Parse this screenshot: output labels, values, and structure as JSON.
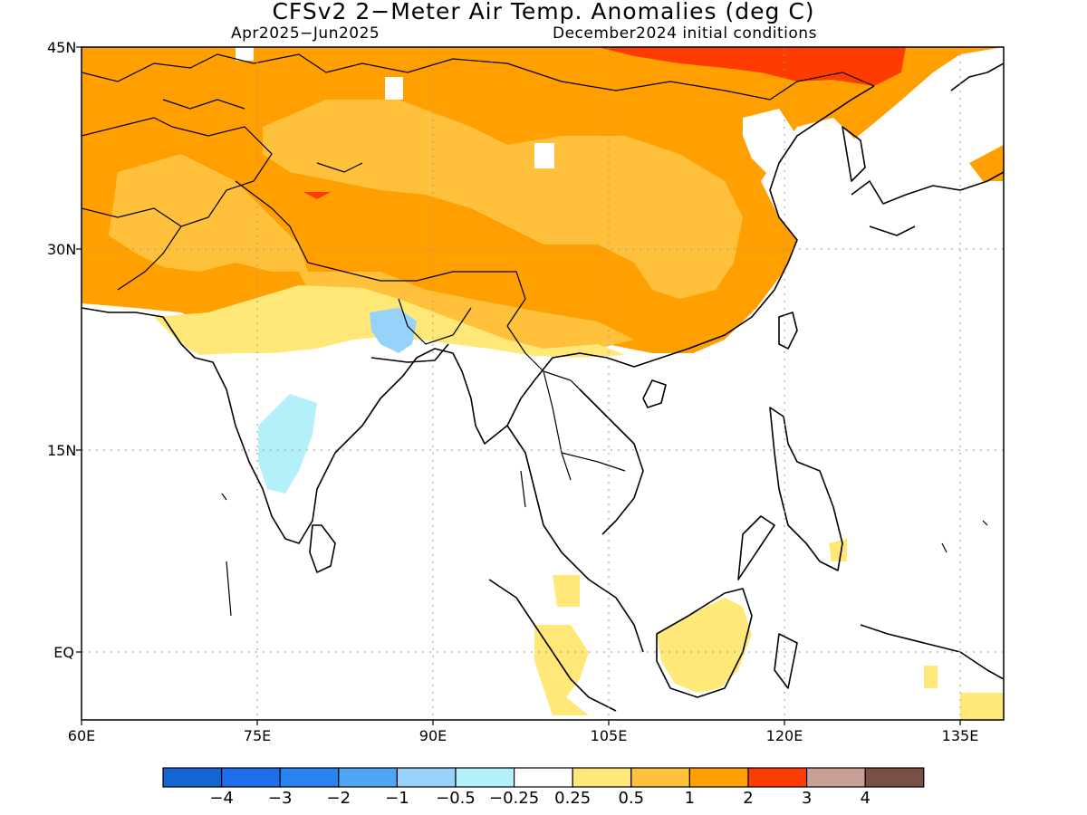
{
  "title": "CFSv2 2−Meter Air Temp. Anomalies (deg C)",
  "subtitle_left": "Apr2025−Jun2025",
  "subtitle_right": "December2024 initial conditions",
  "lat_labels": [
    "45N",
    "30N",
    "15N",
    "EQ"
  ],
  "lon_labels": [
    "60E",
    "75E",
    "90E",
    "105E",
    "120E",
    "135E"
  ],
  "colorbar": {
    "colors": [
      "#1464d2",
      "#1e6eeb",
      "#2882f0",
      "#50a5f5",
      "#96d2fa",
      "#b4f0fa",
      "#ffffff",
      "#ffe878",
      "#ffc03c",
      "#ffa000",
      "#ff3c00",
      "#c8a096",
      "#785046"
    ],
    "labels": [
      "−4",
      "−3",
      "−2",
      "−1",
      "−0.5",
      "−0.25",
      "0.25",
      "0.5",
      "1",
      "2",
      "3",
      "4"
    ]
  }
}
